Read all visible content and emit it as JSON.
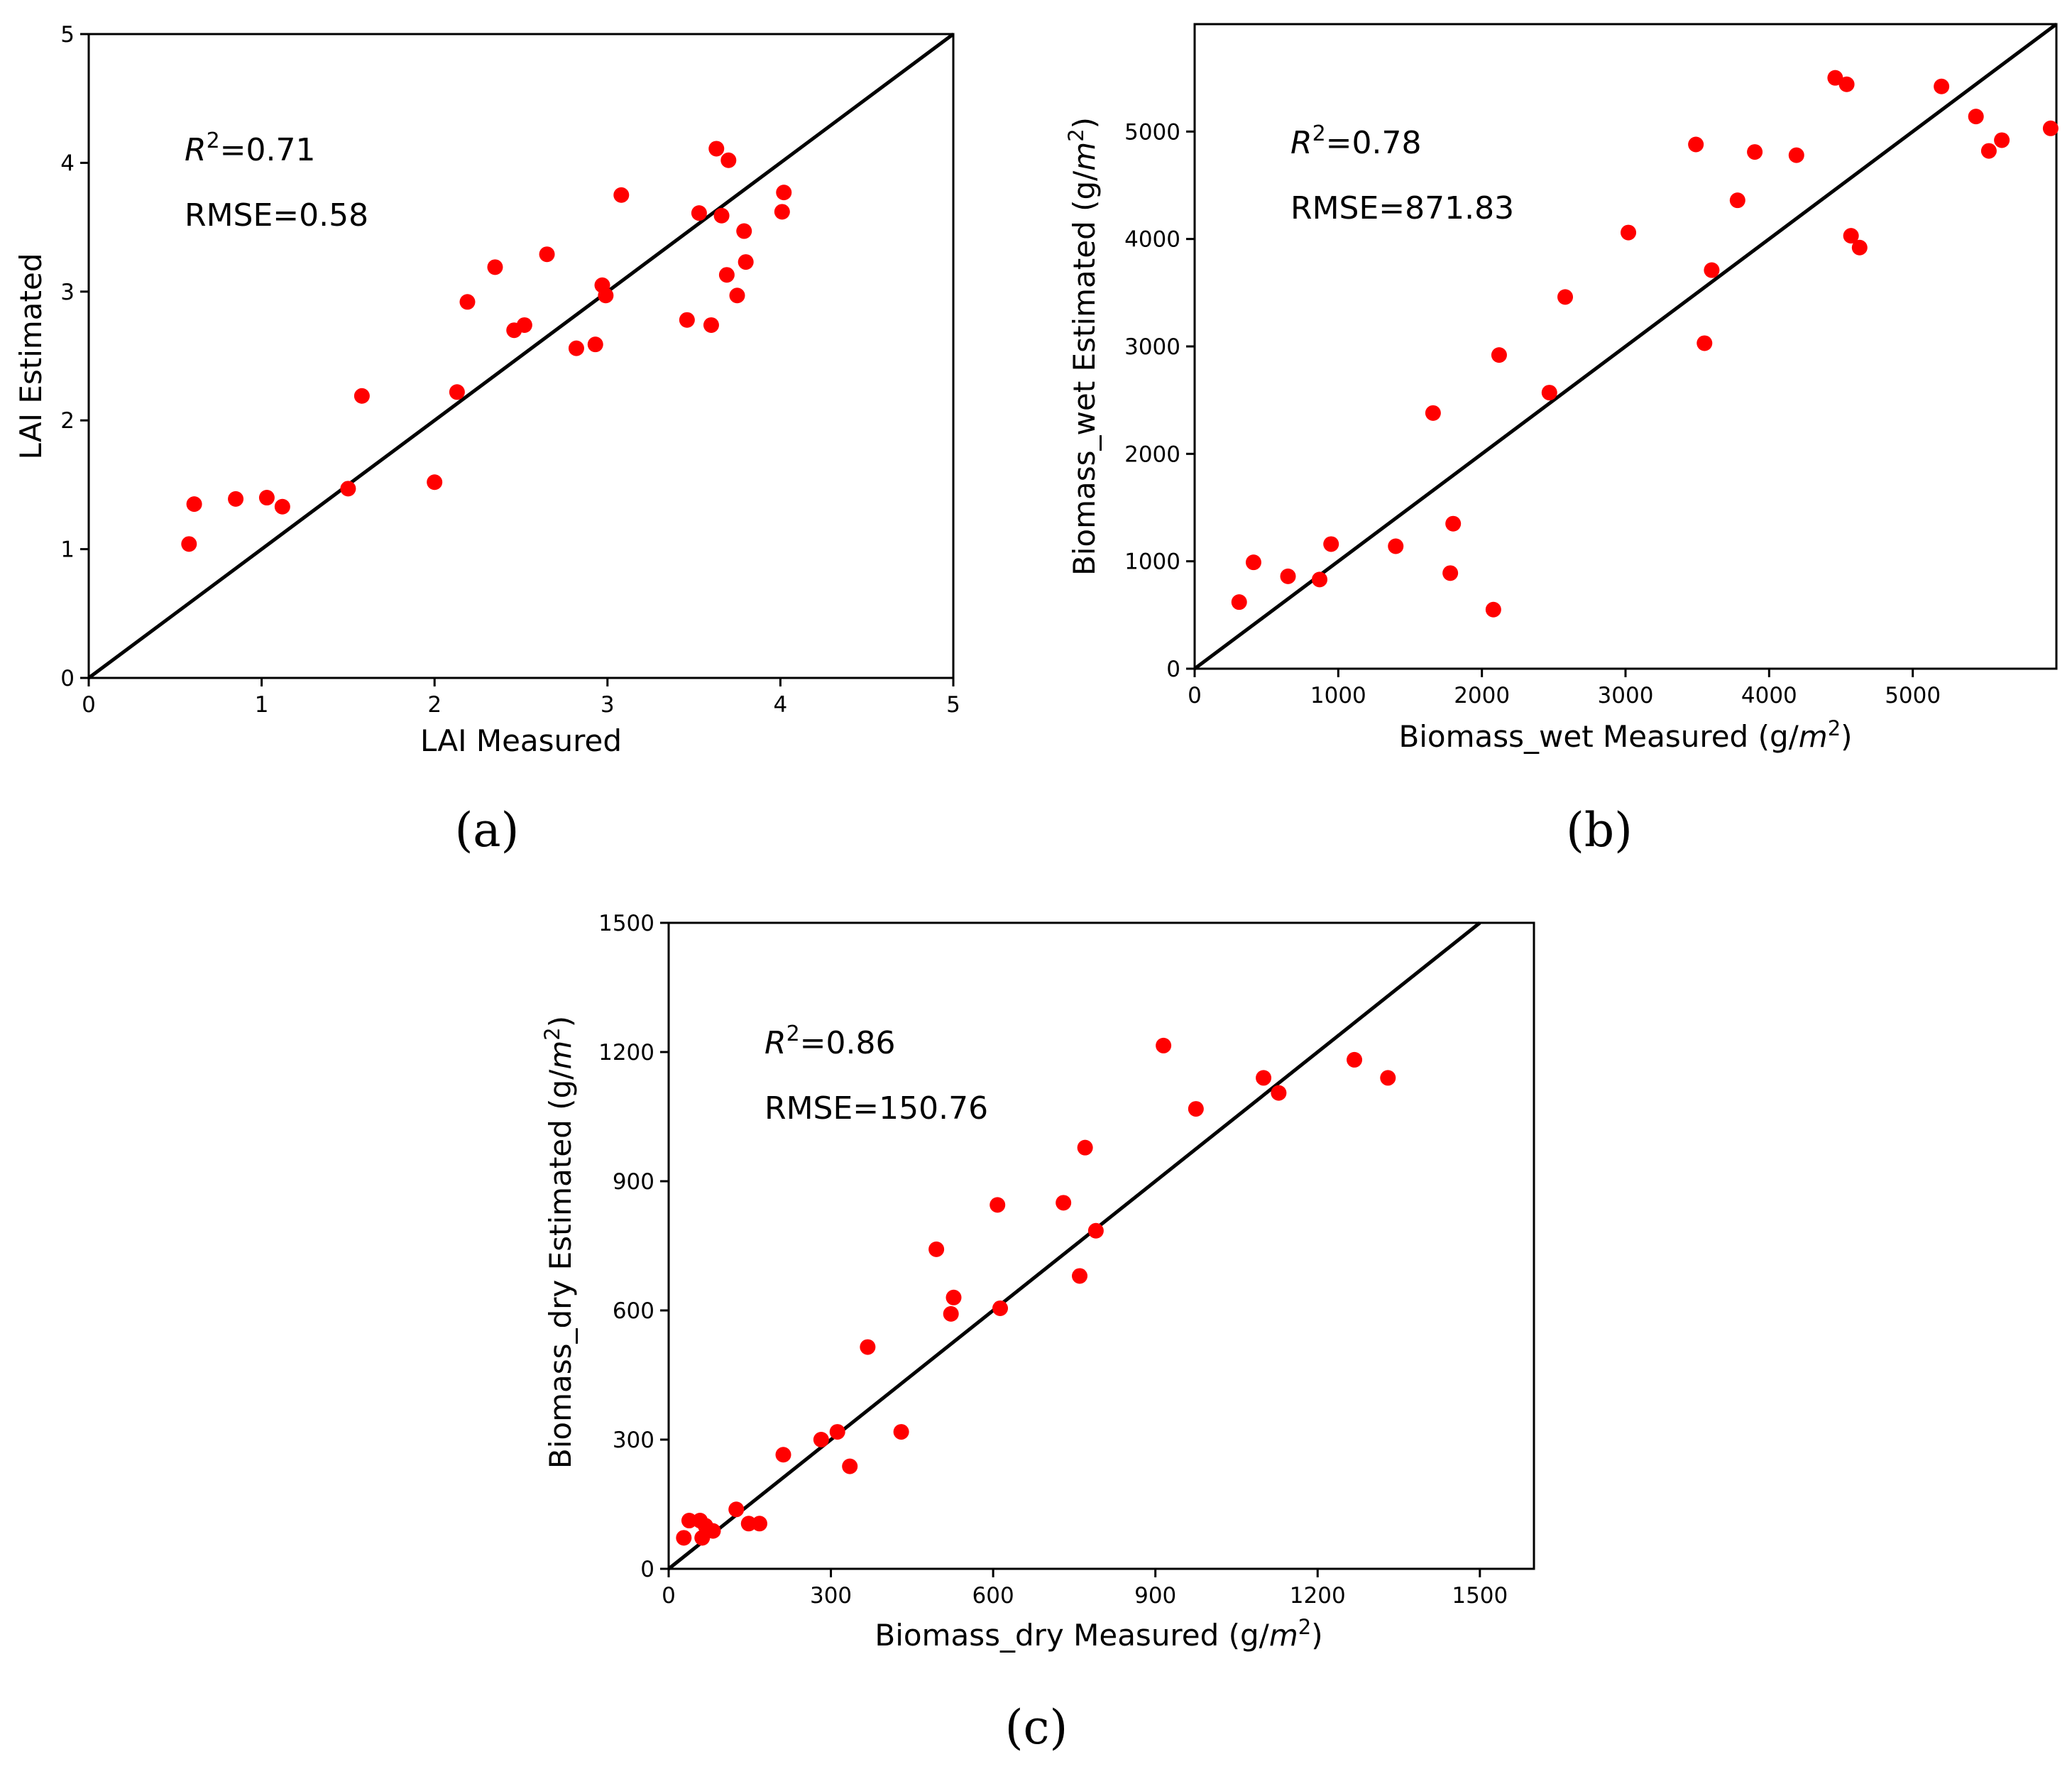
{
  "chart_data": [
    {
      "type": "scatter",
      "panel_label": "(a)",
      "xlabel": "LAI Measured",
      "ylabel": "LAI Estimated",
      "xlim": [
        0,
        5
      ],
      "ylim": [
        0,
        5
      ],
      "xticks": [
        "0",
        "1",
        "2",
        "3",
        "4",
        "5"
      ],
      "yticks": [
        "0",
        "1",
        "2",
        "3",
        "4",
        "5"
      ],
      "marker_color": "#ff0000",
      "reference_line": "1:1",
      "annotations": {
        "r2_symbol": "R",
        "r2_sup": "2",
        "r2_value": "=0.71",
        "rmse": "RMSE=0.58"
      },
      "points": [
        [
          0.58,
          1.04
        ],
        [
          0.61,
          1.35
        ],
        [
          0.85,
          1.39
        ],
        [
          1.03,
          1.4
        ],
        [
          1.12,
          1.33
        ],
        [
          1.5,
          1.47
        ],
        [
          1.58,
          2.19
        ],
        [
          2.0,
          1.52
        ],
        [
          2.13,
          2.22
        ],
        [
          2.19,
          2.92
        ],
        [
          2.35,
          3.19
        ],
        [
          2.46,
          2.7
        ],
        [
          2.52,
          2.74
        ],
        [
          2.65,
          3.29
        ],
        [
          2.82,
          2.56
        ],
        [
          2.93,
          2.59
        ],
        [
          2.97,
          3.05
        ],
        [
          2.99,
          2.97
        ],
        [
          3.08,
          3.75
        ],
        [
          3.46,
          2.78
        ],
        [
          3.53,
          3.61
        ],
        [
          3.6,
          2.74
        ],
        [
          3.63,
          4.11
        ],
        [
          3.66,
          3.59
        ],
        [
          3.69,
          3.13
        ],
        [
          3.7,
          4.02
        ],
        [
          3.75,
          2.97
        ],
        [
          3.79,
          3.47
        ],
        [
          3.8,
          3.23
        ],
        [
          4.01,
          3.62
        ],
        [
          4.02,
          3.77
        ]
      ]
    },
    {
      "type": "scatter",
      "panel_label": "(b)",
      "xlabel": "Biomass_wet Measured (g/",
      "xlabel_unit": "m",
      "xlabel_sup": "2",
      "xlabel_end": ")",
      "ylabel": "Biomass_wet Estimated (g/",
      "ylabel_unit": "m",
      "ylabel_sup": "2",
      "ylabel_end": ")",
      "xlim": [
        0,
        6000
      ],
      "ylim": [
        0,
        6000
      ],
      "xticks": [
        "0",
        "1000",
        "2000",
        "3000",
        "4000",
        "5000"
      ],
      "yticks": [
        "0",
        "1000",
        "2000",
        "3000",
        "4000",
        "5000"
      ],
      "marker_color": "#ff0000",
      "reference_line": "1:1",
      "annotations": {
        "r2_symbol": "R",
        "r2_sup": "2",
        "r2_value": "=0.78",
        "rmse": "RMSE=871.83"
      },
      "points": [
        [
          310,
          620
        ],
        [
          410,
          990
        ],
        [
          650,
          860
        ],
        [
          870,
          830
        ],
        [
          950,
          1160
        ],
        [
          1400,
          1140
        ],
        [
          1660,
          2380
        ],
        [
          1780,
          890
        ],
        [
          1800,
          1350
        ],
        [
          2080,
          550
        ],
        [
          2120,
          2920
        ],
        [
          2470,
          2570
        ],
        [
          2580,
          3460
        ],
        [
          3020,
          4060
        ],
        [
          3490,
          4880
        ],
        [
          3550,
          3030
        ],
        [
          3600,
          3710
        ],
        [
          3780,
          4360
        ],
        [
          3900,
          4810
        ],
        [
          4190,
          4780
        ],
        [
          4460,
          5500
        ],
        [
          4540,
          5440
        ],
        [
          4570,
          4030
        ],
        [
          4630,
          3920
        ],
        [
          5200,
          5420
        ],
        [
          5440,
          5140
        ],
        [
          5530,
          4820
        ],
        [
          5620,
          4920
        ],
        [
          5960,
          5030
        ]
      ]
    },
    {
      "type": "scatter",
      "panel_label": "(c)",
      "xlabel": "Biomass_dry Measured (g/",
      "xlabel_unit": "m",
      "xlabel_sup": "2",
      "xlabel_end": ")",
      "ylabel": "Biomass_dry Estimated (g/",
      "ylabel_unit": "m",
      "ylabel_sup": "2",
      "ylabel_end": ")",
      "xlim": [
        0,
        1600
      ],
      "ylim": [
        0,
        1500
      ],
      "xticks": [
        "0",
        "300",
        "600",
        "900",
        "1200",
        "1500"
      ],
      "yticks": [
        "0",
        "300",
        "600",
        "900",
        "1200",
        "1500"
      ],
      "marker_color": "#ff0000",
      "reference_line": "1:1",
      "annotations": {
        "r2_symbol": "R",
        "r2_sup": "2",
        "r2_value": "=0.86",
        "rmse": "RMSE=150.76"
      },
      "points": [
        [
          28,
          72
        ],
        [
          38,
          112
        ],
        [
          58,
          112
        ],
        [
          62,
          72
        ],
        [
          68,
          100
        ],
        [
          82,
          88
        ],
        [
          125,
          138
        ],
        [
          148,
          105
        ],
        [
          168,
          105
        ],
        [
          212,
          265
        ],
        [
          282,
          300
        ],
        [
          312,
          318
        ],
        [
          335,
          238
        ],
        [
          368,
          515
        ],
        [
          430,
          318
        ],
        [
          495,
          742
        ],
        [
          522,
          592
        ],
        [
          527,
          630
        ],
        [
          608,
          845
        ],
        [
          613,
          605
        ],
        [
          730,
          850
        ],
        [
          760,
          680
        ],
        [
          770,
          978
        ],
        [
          790,
          785
        ],
        [
          915,
          1215
        ],
        [
          975,
          1068
        ],
        [
          1100,
          1140
        ],
        [
          1128,
          1105
        ],
        [
          1268,
          1182
        ],
        [
          1330,
          1140
        ]
      ]
    }
  ]
}
